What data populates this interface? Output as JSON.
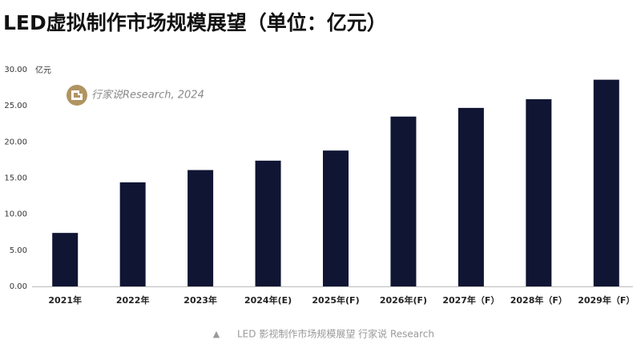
{
  "chart_data": {
    "type": "bar",
    "title": "LED虚拟制作市场规模展望（单位：亿元）",
    "y_unit": "亿元",
    "watermark": "行家说Research, 2024",
    "caption": "LED 影视制作市场规模展望 行家说 Research",
    "categories": [
      "2021年",
      "2022年",
      "2023年",
      "2024年(E)",
      "2025年(F)",
      "2026年(F)",
      "2027年（F）",
      "2028年（F）",
      "2029年（F）"
    ],
    "values": [
      7.4,
      14.4,
      16.1,
      17.4,
      18.8,
      23.5,
      24.7,
      25.9,
      28.6
    ],
    "color": "#0f1533",
    "ylim": [
      0,
      30
    ],
    "yticks": [
      {
        "value": 0,
        "label": "0.00"
      },
      {
        "value": 5,
        "label": "5.00"
      },
      {
        "value": 10,
        "label": "10.00"
      },
      {
        "value": 15,
        "label": "15.00"
      },
      {
        "value": 20,
        "label": "20.00"
      },
      {
        "value": 25,
        "label": "25.00"
      },
      {
        "value": 30,
        "label": "30.00"
      }
    ],
    "grid": false
  }
}
